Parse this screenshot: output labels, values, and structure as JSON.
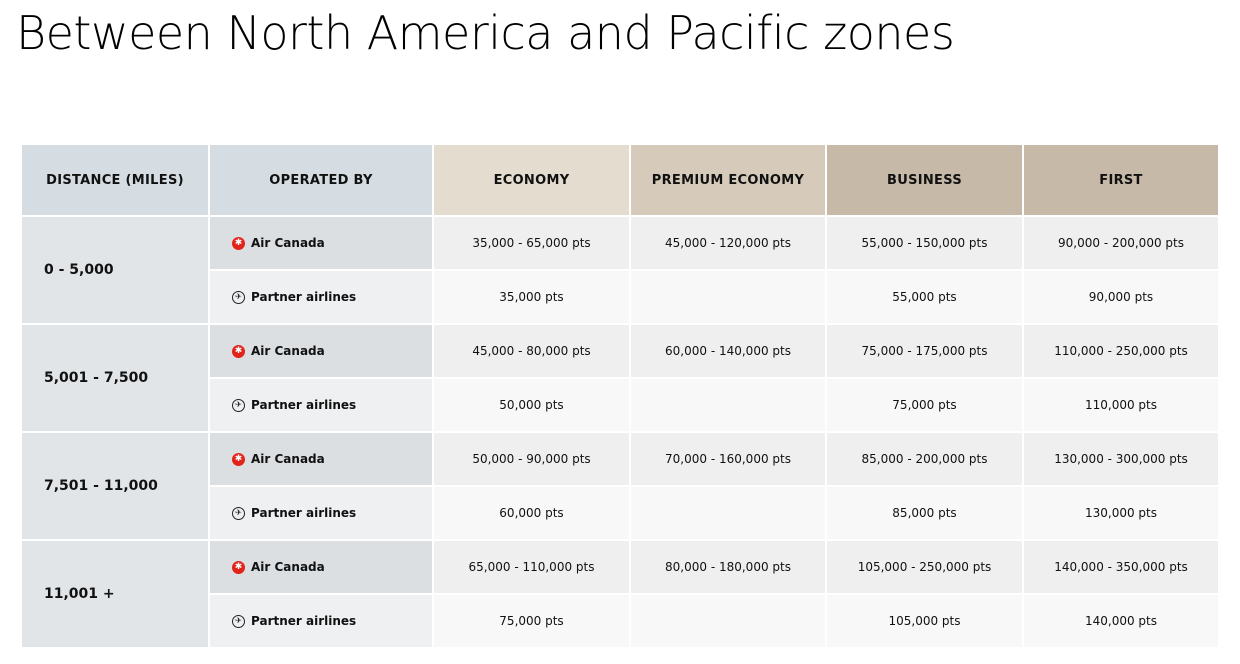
{
  "title": "Between North America and Pacific zones",
  "headers": [
    "DISTANCE (MILES)",
    "OPERATED BY",
    "ECONOMY",
    "PREMIUM ECONOMY",
    "BUSINESS",
    "FIRST"
  ],
  "colors": {
    "header_distance": "#d5dde2",
    "header_economy": "#e3dccf",
    "header_premium": "#d6cbbb",
    "header_business_first": "#c6b9a7",
    "air_canada_red": "#e2231a"
  },
  "groups": [
    {
      "distance": "0 - 5,000",
      "rows": [
        {
          "operator": "Air Canada",
          "icon": "maple-leaf-icon",
          "values": [
            "35,000 - 65,000 pts",
            "45,000 - 120,000 pts",
            "55,000 - 150,000 pts",
            "90,000 - 200,000 pts"
          ]
        },
        {
          "operator": "Partner airlines",
          "icon": "plane-icon",
          "values": [
            "35,000 pts",
            "",
            "55,000 pts",
            "90,000 pts"
          ]
        }
      ]
    },
    {
      "distance": "5,001 - 7,500",
      "rows": [
        {
          "operator": "Air Canada",
          "icon": "maple-leaf-icon",
          "values": [
            "45,000 - 80,000 pts",
            "60,000 - 140,000 pts",
            "75,000 - 175,000 pts",
            "110,000 - 250,000 pts"
          ]
        },
        {
          "operator": "Partner airlines",
          "icon": "plane-icon",
          "values": [
            "50,000 pts",
            "",
            "75,000 pts",
            "110,000 pts"
          ]
        }
      ]
    },
    {
      "distance": "7,501 - 11,000",
      "rows": [
        {
          "operator": "Air Canada",
          "icon": "maple-leaf-icon",
          "values": [
            "50,000 - 90,000 pts",
            "70,000 - 160,000 pts",
            "85,000 - 200,000 pts",
            "130,000 - 300,000 pts"
          ]
        },
        {
          "operator": "Partner airlines",
          "icon": "plane-icon",
          "values": [
            "60,000 pts",
            "",
            "85,000 pts",
            "130,000 pts"
          ]
        }
      ]
    },
    {
      "distance": "11,001 +",
      "rows": [
        {
          "operator": "Air Canada",
          "icon": "maple-leaf-icon",
          "values": [
            "65,000 - 110,000 pts",
            "80,000 - 180,000 pts",
            "105,000 - 250,000 pts",
            "140,000 - 350,000 pts"
          ]
        },
        {
          "operator": "Partner airlines",
          "icon": "plane-icon",
          "values": [
            "75,000 pts",
            "",
            "105,000 pts",
            "140,000 pts"
          ]
        }
      ]
    }
  ]
}
